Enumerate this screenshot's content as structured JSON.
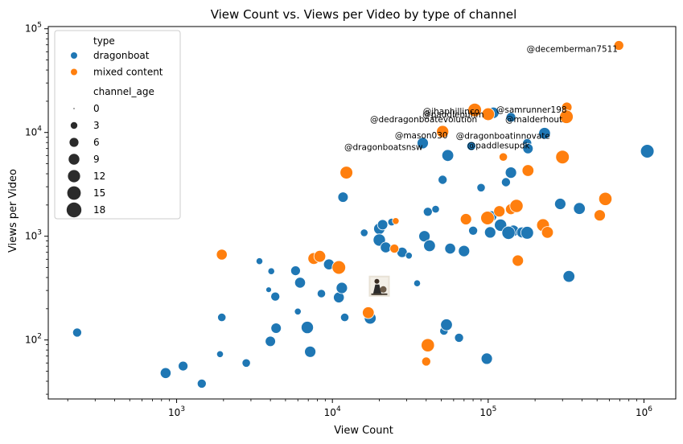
{
  "chart_data": {
    "type": "scatter",
    "title": "View Count vs. Views per Video by type of channel",
    "xlabel": "View Count",
    "ylabel": "Views per Video",
    "xscale": "log",
    "yscale": "log",
    "xlim": [
      150,
      1600000
    ],
    "ylim": [
      27,
      105000
    ],
    "x_ticks": [
      {
        "value": 1000,
        "base": "10",
        "exp": "3"
      },
      {
        "value": 10000,
        "base": "10",
        "exp": "4"
      },
      {
        "value": 100000,
        "base": "10",
        "exp": "5"
      },
      {
        "value": 1000000,
        "base": "10",
        "exp": "6"
      }
    ],
    "y_ticks": [
      {
        "value": 100,
        "base": "10",
        "exp": "2"
      },
      {
        "value": 1000,
        "base": "10",
        "exp": "3"
      },
      {
        "value": 10000,
        "base": "10",
        "exp": "4"
      },
      {
        "value": 100000,
        "base": "10",
        "exp": "5"
      }
    ],
    "grid": false,
    "colors": {
      "dragonboat": "#1f77b4",
      "mixed content": "#ff7f0e"
    },
    "legend": {
      "placement": "upper-left",
      "hue_title": "type",
      "hue_entries": [
        {
          "label": "dragonboat",
          "color": "#1f77b4"
        },
        {
          "label": "mixed content",
          "color": "#ff7f0e"
        }
      ],
      "size_title": "channel_age",
      "size_entries": [
        "0",
        "3",
        "6",
        "9",
        "12",
        "15",
        "18"
      ]
    },
    "series": [
      {
        "name": "dragonboat",
        "color": "#1f77b4",
        "points": [
          [
            230,
            118,
            6
          ],
          [
            850,
            48,
            9
          ],
          [
            1100,
            56,
            7
          ],
          [
            1450,
            38,
            6
          ],
          [
            1950,
            165,
            5
          ],
          [
            1900,
            73,
            3
          ],
          [
            2800,
            60,
            5
          ],
          [
            3400,
            575,
            3
          ],
          [
            3900,
            305,
            2
          ],
          [
            4050,
            460,
            3
          ],
          [
            4000,
            97,
            8
          ],
          [
            4300,
            262,
            6
          ],
          [
            4350,
            130,
            8
          ],
          [
            5800,
            465,
            7
          ],
          [
            6000,
            188,
            3
          ],
          [
            6200,
            357,
            9
          ],
          [
            6900,
            132,
            12
          ],
          [
            7200,
            77,
            10
          ],
          [
            8500,
            280,
            5
          ],
          [
            9500,
            535,
            9
          ],
          [
            11000,
            257,
            9
          ],
          [
            11500,
            317,
            10
          ],
          [
            11700,
            2380,
            8
          ],
          [
            12000,
            165,
            5
          ],
          [
            16000,
            1080,
            4
          ],
          [
            17500,
            162,
            11
          ],
          [
            20000,
            1180,
            10
          ],
          [
            20000,
            920,
            12
          ],
          [
            21000,
            1290,
            8
          ],
          [
            22000,
            780,
            9
          ],
          [
            24000,
            1370,
            4
          ],
          [
            28000,
            700,
            8
          ],
          [
            31000,
            650,
            3
          ],
          [
            35000,
            352,
            3
          ],
          [
            38000,
            7900,
            10
          ],
          [
            39000,
            1000,
            10
          ],
          [
            41000,
            1720,
            6
          ],
          [
            42000,
            810,
            11
          ],
          [
            46000,
            1820,
            4
          ],
          [
            51000,
            3500,
            6
          ],
          [
            52000,
            122,
            5
          ],
          [
            54000,
            140,
            11
          ],
          [
            55000,
            6000,
            11
          ],
          [
            57000,
            760,
            9
          ],
          [
            65000,
            105,
            6
          ],
          [
            70000,
            720,
            10
          ],
          [
            80000,
            1130,
            6
          ],
          [
            78000,
            7400,
            6
          ],
          [
            90000,
            2940,
            5
          ],
          [
            98000,
            66,
            10
          ],
          [
            103000,
            1090,
            10
          ],
          [
            105000,
            1560,
            9
          ],
          [
            108000,
            15500,
            10
          ],
          [
            120000,
            1280,
            12
          ],
          [
            130000,
            3320,
            6
          ],
          [
            140000,
            14000,
            7
          ],
          [
            140000,
            4100,
            10
          ],
          [
            145000,
            1130,
            10
          ],
          [
            135000,
            1080,
            14
          ],
          [
            165000,
            1090,
            9
          ],
          [
            178000,
            7900,
            6
          ],
          [
            180000,
            7000,
            8
          ],
          [
            178000,
            1080,
            13
          ],
          [
            230000,
            9800,
            11
          ],
          [
            290000,
            2050,
            10
          ],
          [
            330000,
            410,
            11
          ],
          [
            385000,
            1850,
            11
          ],
          [
            1050000,
            6600,
            15
          ]
        ]
      },
      {
        "name": "mixed content",
        "color": "#ff7f0e",
        "points": [
          [
            1950,
            665,
            9
          ],
          [
            7600,
            610,
            11
          ],
          [
            8300,
            640,
            11
          ],
          [
            11000,
            500,
            15
          ],
          [
            12300,
            4100,
            13
          ],
          [
            17000,
            183,
            11
          ],
          [
            25000,
            760,
            6
          ],
          [
            25500,
            1400,
            3
          ],
          [
            40000,
            62,
            6
          ],
          [
            41000,
            89,
            14
          ],
          [
            51000,
            10200,
            12
          ],
          [
            82000,
            16500,
            15
          ],
          [
            72000,
            1460,
            10
          ],
          [
            99000,
            1500,
            15
          ],
          [
            100000,
            15000,
            13
          ],
          [
            118000,
            1740,
            10
          ],
          [
            125000,
            5800,
            5
          ],
          [
            140000,
            1820,
            9
          ],
          [
            152000,
            1960,
            14
          ],
          [
            155000,
            582,
            10
          ],
          [
            180000,
            4300,
            11
          ],
          [
            225000,
            1280,
            13
          ],
          [
            240000,
            1090,
            11
          ],
          [
            300000,
            5800,
            15
          ],
          [
            320000,
            17500,
            8
          ],
          [
            318000,
            14200,
            15
          ],
          [
            520000,
            1590,
            10
          ],
          [
            565000,
            2290,
            14
          ],
          [
            690000,
            69000,
            7
          ]
        ]
      }
    ],
    "annotations": [
      {
        "text": "@decemberman7511",
        "x": 680000,
        "y": 60000
      },
      {
        "text": "@jhaphillinco",
        "x": 88000,
        "y": 15000
      },
      {
        "text": "@samrunner198",
        "x": 320000,
        "y": 15500
      },
      {
        "text": "@paddlenuhm",
        "x": 94000,
        "y": 14000
      },
      {
        "text": "@dedragonboatevolution",
        "x": 85000,
        "y": 12600
      },
      {
        "text": "@malderhout",
        "x": 300000,
        "y": 12600
      },
      {
        "text": "@mason030",
        "x": 55000,
        "y": 8800
      },
      {
        "text": "@dragonboatinnovate",
        "x": 250000,
        "y": 8700
      },
      {
        "text": "@paddlesupdk",
        "x": 185000,
        "y": 7000
      },
      {
        "text": "@dragonboatsnsw",
        "x": 38000,
        "y": 6800
      }
    ],
    "thumbnail_point": {
      "x": 20000,
      "y": 330
    }
  }
}
